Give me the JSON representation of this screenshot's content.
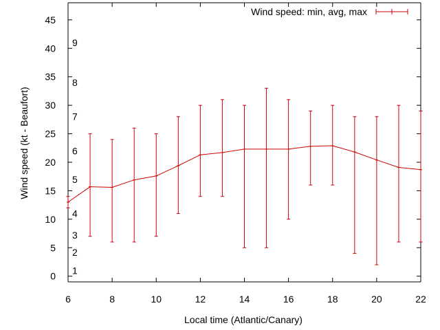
{
  "chart_data": {
    "type": "line",
    "title": "",
    "xlabel": "Local time (Atlantic/Canary)",
    "ylabel": "Wind speed (kt - Beaufort)",
    "xlim": [
      6,
      22
    ],
    "ylim": [
      -1,
      48
    ],
    "x_ticks": [
      6,
      8,
      10,
      12,
      14,
      16,
      18,
      20,
      22
    ],
    "y_ticks": [
      0,
      5,
      10,
      15,
      20,
      25,
      30,
      35,
      40,
      45
    ],
    "beaufort_labels": [
      {
        "label": "1",
        "value": 1
      },
      {
        "label": "2",
        "value": 4.2
      },
      {
        "label": "3",
        "value": 7.2
      },
      {
        "label": "4",
        "value": 11
      },
      {
        "label": "5",
        "value": 17
      },
      {
        "label": "6",
        "value": 22
      },
      {
        "label": "7",
        "value": 28
      },
      {
        "label": "8",
        "value": 34
      },
      {
        "label": "9",
        "value": 41
      }
    ],
    "legend": {
      "position": "top-right",
      "entries": [
        "Wind speed: min, avg, max"
      ]
    },
    "grid": false,
    "series": [
      {
        "name": "Wind speed: min, avg, max",
        "color": "#cc0000",
        "style": "line-with-errorbars",
        "x": [
          6,
          7,
          8,
          9,
          10,
          11,
          12,
          13,
          14,
          15,
          16,
          17,
          18,
          19,
          20,
          21,
          22
        ],
        "avg": [
          13,
          15.7,
          15.6,
          16.9,
          17.6,
          19.4,
          21.3,
          21.7,
          22.3,
          22.3,
          22.3,
          22.8,
          22.9,
          21.8,
          20.4,
          19.1,
          18.7
        ],
        "min": [
          12,
          7,
          6,
          6,
          7,
          11,
          14,
          14,
          5,
          5,
          10,
          16,
          16,
          4,
          2,
          6,
          6
        ],
        "max": [
          14,
          25,
          24,
          26,
          25,
          28,
          30,
          31,
          30,
          33,
          31,
          29,
          30,
          28,
          28,
          30,
          29
        ]
      }
    ]
  }
}
